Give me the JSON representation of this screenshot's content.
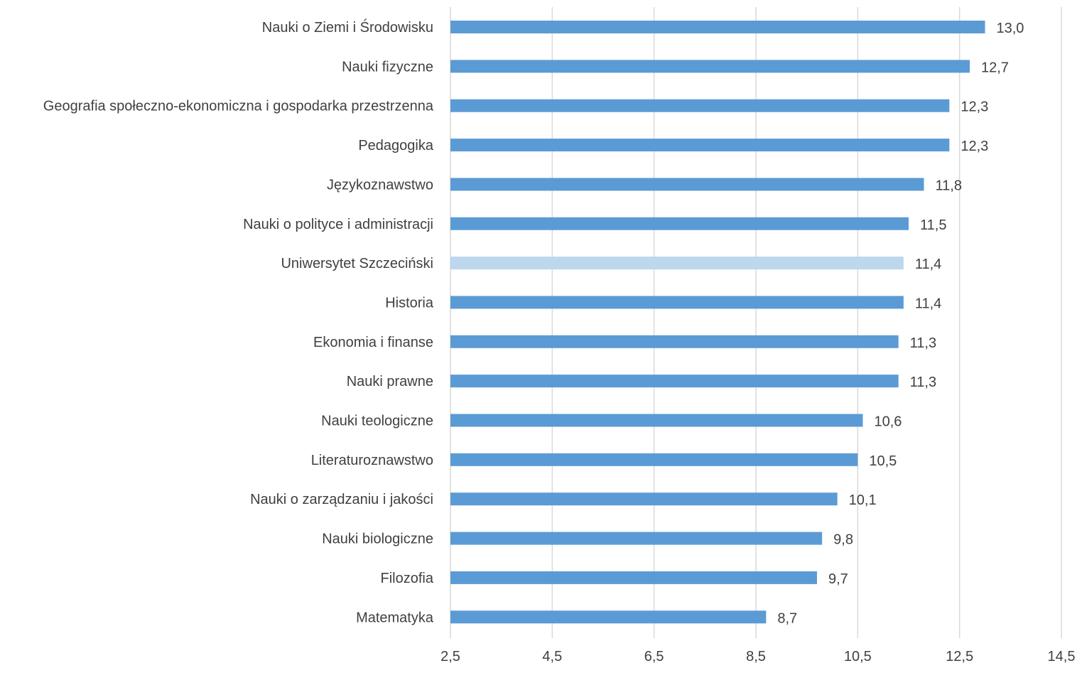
{
  "chart_data": {
    "type": "bar",
    "orientation": "horizontal",
    "title": "",
    "xlabel": "",
    "ylabel": "",
    "xlim": [
      2.5,
      14.5
    ],
    "x_ticks": [
      "2,5",
      "4,5",
      "6,5",
      "8,5",
      "10,5",
      "12,5",
      "14,5"
    ],
    "x_tick_values": [
      2.5,
      4.5,
      6.5,
      8.5,
      10.5,
      12.5,
      14.5
    ],
    "grid": true,
    "legend": "none",
    "colors": {
      "bar": "#5b9bd5",
      "highlight_bar": "#bdd7ee",
      "gridline": "#d9d9d9",
      "text": "#404040"
    },
    "highlight_category": "Uniwersytet Szczeciński",
    "categories": [
      "Nauki o Ziemi i Środowisku",
      "Nauki fizyczne",
      "Geografia społeczno-ekonomiczna i gospodarka przestrzenna",
      "Pedagogika",
      "Językoznawstwo",
      "Nauki o polityce i administracji",
      "Uniwersytet Szczeciński",
      "Historia",
      "Ekonomia i finanse",
      "Nauki prawne",
      "Nauki teologiczne",
      "Literaturoznawstwo",
      "Nauki o zarządzaniu i jakości",
      "Nauki biologiczne",
      "Filozofia",
      "Matematyka"
    ],
    "values": [
      13.0,
      12.7,
      12.3,
      12.3,
      11.8,
      11.5,
      11.4,
      11.4,
      11.3,
      11.3,
      10.6,
      10.5,
      10.1,
      9.8,
      9.7,
      8.7
    ],
    "value_labels": [
      "13,0",
      "12,7",
      "12,3",
      "12,3",
      "11,8",
      "11,5",
      "11,4",
      "11,4",
      "11,3",
      "11,3",
      "10,6",
      "10,5",
      "10,1",
      "9,8",
      "9,7",
      "8,7"
    ]
  }
}
